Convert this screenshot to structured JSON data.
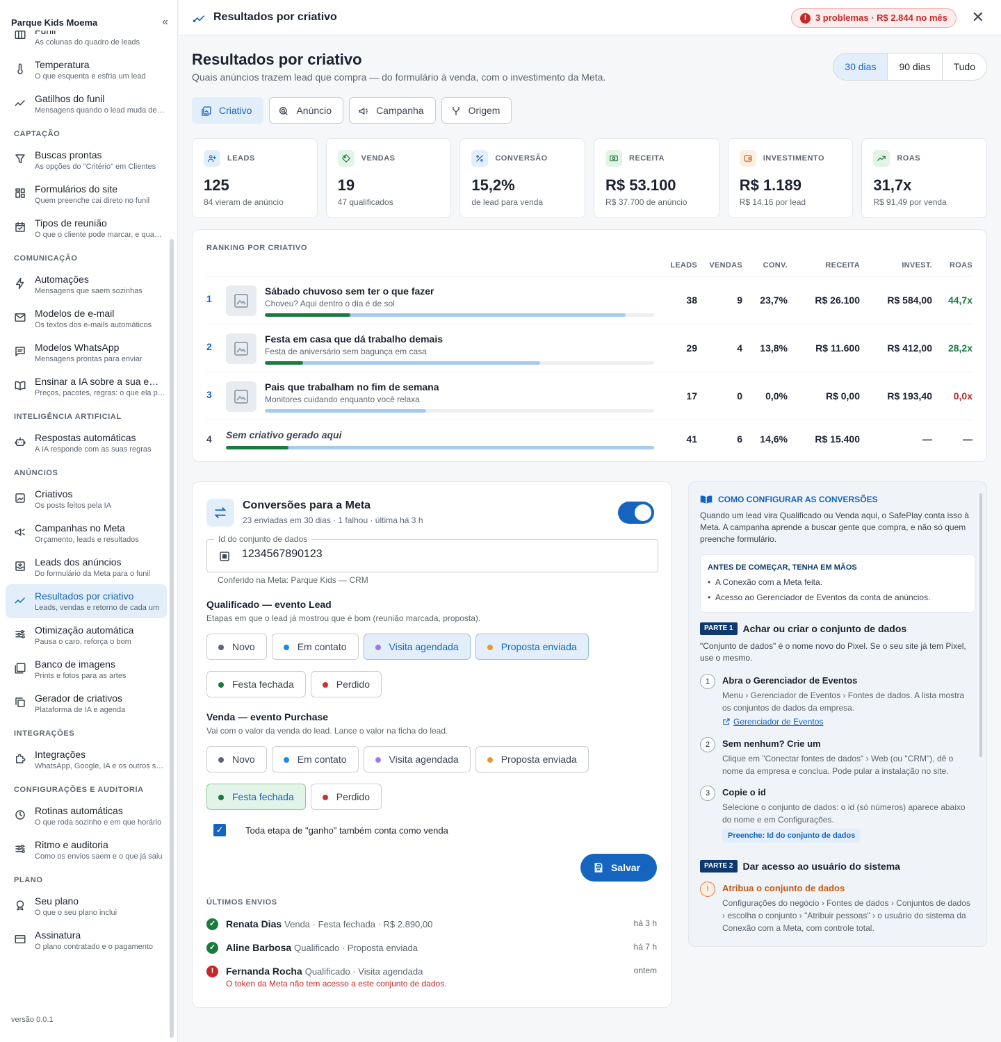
{
  "sidebar": {
    "brand": "Parque Kids Moema",
    "collapse_label": "«",
    "version": "versão 0.0.1",
    "top_items": [
      {
        "title": "Funil",
        "sub": "As colunas do quadro de leads",
        "icon": "columns-icon"
      },
      {
        "title": "Temperatura",
        "sub": "O que esquenta e esfria um lead",
        "icon": "thermometer-icon"
      },
      {
        "title": "Gatilhos do funil",
        "sub": "Mensagens quando o lead muda de etapa",
        "icon": "trend-icon"
      }
    ],
    "sections": [
      {
        "label": "CAPTAÇÃO",
        "items": [
          {
            "title": "Buscas prontas",
            "sub": "As opções do \"Critério\" em Clientes",
            "icon": "filter-icon"
          },
          {
            "title": "Formulários do site",
            "sub": "Quem preenche cai direto no funil",
            "icon": "form-icon"
          },
          {
            "title": "Tipos de reunião",
            "sub": "O que o cliente pode marcar, e quando",
            "icon": "calendar-icon"
          }
        ]
      },
      {
        "label": "COMUNICAÇÃO",
        "items": [
          {
            "title": "Automações",
            "sub": "Mensagens que saem sozinhas",
            "icon": "bolt-icon"
          },
          {
            "title": "Modelos de e-mail",
            "sub": "Os textos dos e-mails automáticos",
            "icon": "mail-icon"
          },
          {
            "title": "Modelos WhatsApp",
            "sub": "Mensagens prontas para enviar",
            "icon": "chat-icon"
          },
          {
            "title": "Ensinar a IA sobre a sua empresa",
            "sub": "Preços, pacotes, regras: o que ela precisa saber",
            "icon": "book-icon"
          }
        ]
      },
      {
        "label": "INTELIGÊNCIA ARTIFICIAL",
        "items": [
          {
            "title": "Respostas automáticas",
            "sub": "A IA responde com as suas regras",
            "icon": "robot-icon"
          }
        ]
      },
      {
        "label": "ANÚNCIOS",
        "items": [
          {
            "title": "Criativos",
            "sub": "Os posts feitos pela IA",
            "icon": "image-icon"
          },
          {
            "title": "Campanhas no Meta",
            "sub": "Orçamento, leads e resultados",
            "icon": "megaphone-icon"
          },
          {
            "title": "Leads dos anúncios",
            "sub": "Do formulário da Meta para o funil",
            "icon": "inbox-icon"
          },
          {
            "title": "Resultados por criativo",
            "sub": "Leads, vendas e retorno de cada um",
            "icon": "trend-icon",
            "active": true
          },
          {
            "title": "Otimização automática",
            "sub": "Pausa o caro, reforça o bom",
            "icon": "sliders-icon"
          },
          {
            "title": "Banco de imagens",
            "sub": "Prints e fotos para as artes",
            "icon": "gallery-icon"
          },
          {
            "title": "Gerador de criativos",
            "sub": "Plataforma de IA e agenda",
            "icon": "copy-icon"
          }
        ]
      },
      {
        "label": "INTEGRAÇÕES",
        "items": [
          {
            "title": "Integrações",
            "sub": "WhatsApp, Google, IA e os outros serviços",
            "icon": "puzzle-icon"
          }
        ]
      },
      {
        "label": "CONFIGURAÇÕES E AUDITORIA",
        "items": [
          {
            "title": "Rotinas automáticas",
            "sub": "O que roda sozinho e em que horário",
            "icon": "clock-icon"
          },
          {
            "title": "Ritmo e auditoria",
            "sub": "Como os envios saem e o que já saiu",
            "icon": "sliders-icon"
          }
        ]
      },
      {
        "label": "PLANO",
        "items": [
          {
            "title": "Seu plano",
            "sub": "O que o seu plano inclui",
            "icon": "badge-icon"
          },
          {
            "title": "Assinatura",
            "sub": "O plano contratado e o pagamento",
            "icon": "card-icon"
          }
        ]
      }
    ]
  },
  "topbar": {
    "title": "Resultados por criativo",
    "problems": "3 problemas · R$ 2.844 no mês",
    "problems_icon": "!",
    "close": "✕"
  },
  "page": {
    "title": "Resultados por criativo",
    "subtitle": "Quais anúncios trazem lead que compra — do formulário à venda, com o investimento da Meta.",
    "ranges": [
      "30 dias",
      "90 dias",
      "Tudo"
    ],
    "tabs": [
      "Criativo",
      "Anúncio",
      "Campanha",
      "Origem"
    ]
  },
  "kpis": [
    {
      "label": "LEADS",
      "value": "125",
      "sub": "84 vieram de anúncio",
      "bg": "#e3eefb",
      "fg": "#1565c0",
      "icon": "person-add-icon"
    },
    {
      "label": "VENDAS",
      "value": "19",
      "sub": "47 qualificados",
      "bg": "#e2f3e7",
      "fg": "#1b7a3e",
      "icon": "tag-icon"
    },
    {
      "label": "CONVERSÃO",
      "value": "15,2%",
      "sub": "de lead para venda",
      "bg": "#e3eefb",
      "fg": "#1565c0",
      "icon": "percent-icon"
    },
    {
      "label": "RECEITA",
      "value": "R$ 53.100",
      "sub": "R$ 37.700 de anúncio",
      "bg": "#e2f3e7",
      "fg": "#1b7a3e",
      "icon": "cash-icon"
    },
    {
      "label": "INVESTIMENTO",
      "value": "R$ 1.189",
      "sub": "R$ 14,16 por lead",
      "bg": "#fdeee2",
      "fg": "#c65a12",
      "icon": "wallet-icon"
    },
    {
      "label": "ROAS",
      "value": "31,7x",
      "sub": "R$ 91,49 por venda",
      "bg": "#e2f3e7",
      "fg": "#1b7a3e",
      "icon": "trend-up-icon"
    }
  ],
  "ranking": {
    "title": "RANKING POR CRIATIVO",
    "headers": {
      "leads": "LEADS",
      "vendas": "VENDAS",
      "conv": "CONV.",
      "receita": "RECEITA",
      "invest": "INVEST.",
      "roas": "ROAS"
    },
    "rows": [
      {
        "rank": "1",
        "title": "Sábado chuvoso sem ter o que fazer",
        "sub": "Choveu? Aqui dentro o dia é de sol",
        "leads": "38",
        "vendas": "9",
        "conv": "23,7%",
        "receita": "R$ 26.100",
        "invest": "R$ 584,00",
        "roas": "44,7x",
        "roas_color": "#1b7a3e",
        "lead_fill": 0.927,
        "sale_fill": 0.22
      },
      {
        "rank": "2",
        "title": "Festa em casa que dá trabalho demais",
        "sub": "Festa de aniversário sem bagunça em casa",
        "leads": "29",
        "vendas": "4",
        "conv": "13,8%",
        "receita": "R$ 11.600",
        "invest": "R$ 412,00",
        "roas": "28,2x",
        "roas_color": "#1b7a3e",
        "lead_fill": 0.707,
        "sale_fill": 0.098
      },
      {
        "rank": "3",
        "title": "Pais que trabalham no fim de semana",
        "sub": "Monitores cuidando enquanto você relaxa",
        "leads": "17",
        "vendas": "0",
        "conv": "0,0%",
        "receita": "R$ 0,00",
        "invest": "R$ 193,40",
        "roas": "0,0x",
        "roas_color": "#c62828",
        "lead_fill": 0.415,
        "sale_fill": 0
      },
      {
        "rank": "4",
        "title": "Sem criativo gerado aqui",
        "sub": "",
        "leads": "41",
        "vendas": "6",
        "conv": "14,6%",
        "receita": "R$ 15.400",
        "invest": "—",
        "roas": "—",
        "roas_color": "#1c2230",
        "lead_fill": 1.0,
        "sale_fill": 0.146
      }
    ]
  },
  "conversions": {
    "title": "Conversões para a Meta",
    "sub": "23 enviadas em 30 dias · 1 falhou · última há 3 h",
    "field_label": "Id do conjunto de dados",
    "field_value": "1234567890123",
    "field_help": "Conferido na Meta: Parque Kids — CRM",
    "qual_title": "Qualificado — evento Lead",
    "qual_sub": "Etapas em que o lead já mostrou que é bom (reunião marcada, proposta).",
    "venda_title": "Venda — evento Purchase",
    "venda_sub": "Vai com o valor da venda do lead. Lance o valor na ficha do lead.",
    "stages": [
      {
        "label": "Novo",
        "color": "#5d6672"
      },
      {
        "label": "Em contato",
        "color": "#1e88e5"
      },
      {
        "label": "Visita agendada",
        "color": "#9c7be8"
      },
      {
        "label": "Proposta enviada",
        "color": "#e69a2e"
      },
      {
        "label": "Festa fechada",
        "color": "#1b7a3e"
      },
      {
        "label": "Perdido",
        "color": "#d32f2f"
      }
    ],
    "checkbox_label": "Toda etapa de \"ganho\" também conta como venda",
    "checkbox_mark": "✓",
    "save": "Salvar",
    "last_title": "ÚLTIMOS ENVIOS",
    "envios": [
      {
        "name": "Renata Dias",
        "detail": "Venda · Festa fechada · R$ 2.890,00",
        "time": "há 3 h",
        "status": "ok",
        "mark": "✓",
        "error": ""
      },
      {
        "name": "Aline Barbosa",
        "detail": "Qualificado · Proposta enviada",
        "time": "há 7 h",
        "status": "ok",
        "mark": "✓",
        "error": ""
      },
      {
        "name": "Fernanda Rocha",
        "detail": "Qualificado · Visita agendada",
        "time": "ontem",
        "status": "err",
        "mark": "!",
        "error": "O token da Meta não tem acesso a este conjunto de dados."
      }
    ]
  },
  "guide": {
    "title": "COMO CONFIGURAR AS CONVERSÕES",
    "intro": "Quando um lead vira Qualificado ou Venda aqui, o SafePlay conta isso à Meta. A campanha aprende a buscar gente que compra, e não só quem preenche formulário.",
    "box_title": "ANTES DE COMEÇAR, TENHA EM MÃOS",
    "box_items": [
      "A Conexão com a Meta feita.",
      "Acesso ao Gerenciador de Eventos da conta de anúncios."
    ],
    "part1_tag": "PARTE 1",
    "part1_title": "Achar ou criar o conjunto de dados",
    "part1_intro": "\"Conjunto de dados\" é o nome novo do Pixel. Se o seu site já tem Pixel, use o mesmo.",
    "steps": [
      {
        "n": "1",
        "title": "Abra o Gerenciador de Eventos",
        "desc": "Menu › Gerenciador de Eventos › Fontes de dados. A lista mostra os conjuntos de dados da empresa."
      },
      {
        "n": "2",
        "title": "Sem nenhum? Crie um",
        "desc": "Clique em \"Conectar fontes de dados\" › Web (ou \"CRM\"), dê o nome da empresa e conclua. Pode pular a instalação no site."
      },
      {
        "n": "3",
        "title": "Copie o id",
        "desc": "Selecione o conjunto de dados: o id (só números) aparece abaixo do nome e em Configurações."
      }
    ],
    "link": "Gerenciador de Eventos",
    "pill": "Preenche: Id do conjunto de dados",
    "part2_tag": "PARTE 2",
    "part2_title": "Dar acesso ao usuário do sistema",
    "p2_step_title": "Atribua o conjunto de dados",
    "p2_step_icon": "!",
    "p2_step_desc": "Configurações do negócio › Fontes de dados › Conjuntos de dados › escolha o conjunto › \"Atribuir pessoas\" › o usuário do sistema da Conexão com a Meta, com controle total."
  }
}
